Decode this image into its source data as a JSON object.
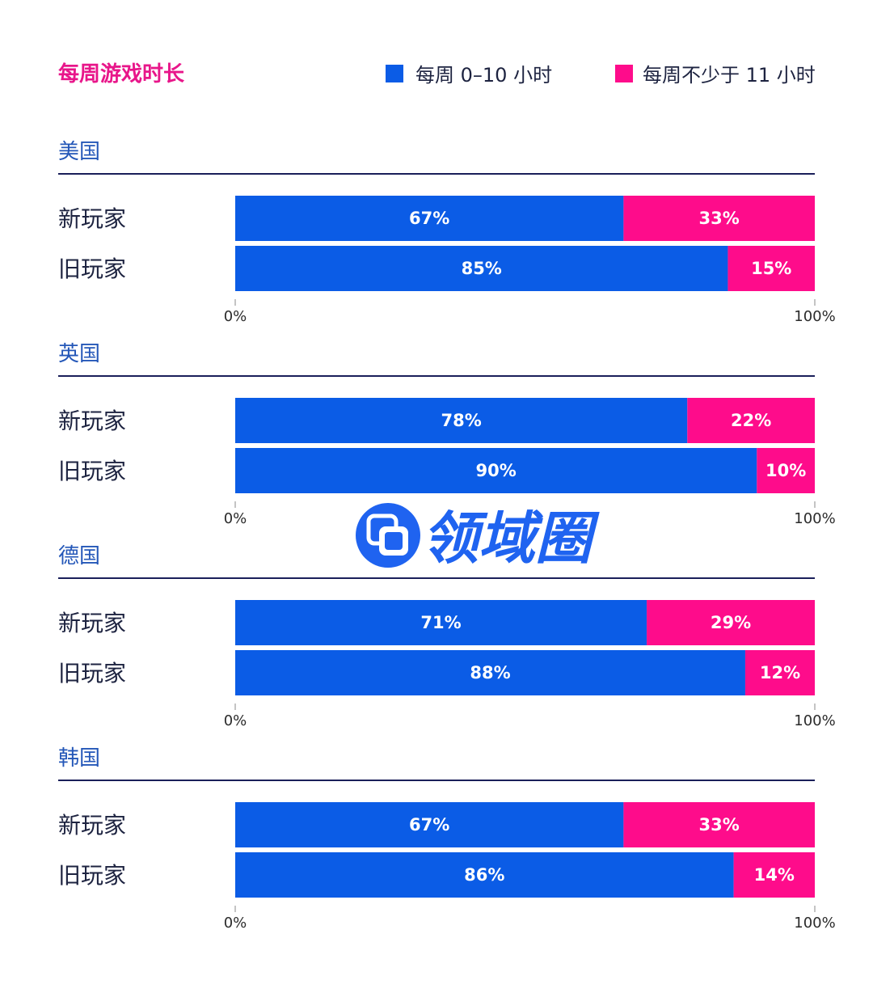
{
  "colors": {
    "blue": "#0b5ce6",
    "pink": "#fe0c8b",
    "title": "#e8168a",
    "group_title": "#2457b8",
    "rule": "#1a1f5a",
    "text": "#1d2340"
  },
  "chart_data": {
    "type": "bar",
    "orientation": "horizontal",
    "stacked": true,
    "normalized": true,
    "title": "每周游戏时长",
    "legend": [
      {
        "name": "每周 0–10 小时",
        "color": "#0b5ce6"
      },
      {
        "name": "每周不少于 11 小时",
        "color": "#fe0c8b"
      }
    ],
    "legend_placement": "top-right",
    "xlim": [
      0,
      100
    ],
    "x_tick_labels": [
      "0%",
      "100%"
    ],
    "groups": [
      {
        "name": "美国",
        "rows": [
          {
            "label": "新玩家",
            "values": [
              67,
              33
            ],
            "value_labels": [
              "67%",
              "33%"
            ]
          },
          {
            "label": "旧玩家",
            "values": [
              85,
              15
            ],
            "value_labels": [
              "85%",
              "15%"
            ]
          }
        ]
      },
      {
        "name": "英国",
        "rows": [
          {
            "label": "新玩家",
            "values": [
              78,
              22
            ],
            "value_labels": [
              "78%",
              "22%"
            ]
          },
          {
            "label": "旧玩家",
            "values": [
              90,
              10
            ],
            "value_labels": [
              "90%",
              "10%"
            ]
          }
        ]
      },
      {
        "name": "德国",
        "rows": [
          {
            "label": "新玩家",
            "values": [
              71,
              29
            ],
            "value_labels": [
              "71%",
              "29%"
            ]
          },
          {
            "label": "旧玩家",
            "values": [
              88,
              12
            ],
            "value_labels": [
              "88%",
              "12%"
            ]
          }
        ]
      },
      {
        "name": "韩国",
        "rows": [
          {
            "label": "新玩家",
            "values": [
              67,
              33
            ],
            "value_labels": [
              "67%",
              "33%"
            ]
          },
          {
            "label": "旧玩家",
            "values": [
              86,
              14
            ],
            "value_labels": [
              "86%",
              "14%"
            ]
          }
        ]
      }
    ]
  },
  "watermark": {
    "text": "领域圈",
    "icon": "overlapping-squares-icon"
  }
}
